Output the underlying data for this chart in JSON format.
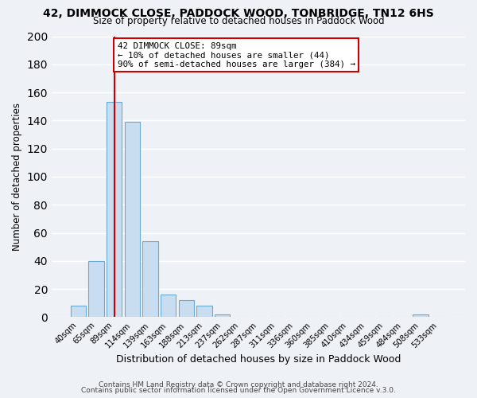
{
  "title": "42, DIMMOCK CLOSE, PADDOCK WOOD, TONBRIDGE, TN12 6HS",
  "subtitle": "Size of property relative to detached houses in Paddock Wood",
  "xlabel": "Distribution of detached houses by size in Paddock Wood",
  "ylabel": "Number of detached properties",
  "bar_labels": [
    "40sqm",
    "65sqm",
    "89sqm",
    "114sqm",
    "139sqm",
    "163sqm",
    "188sqm",
    "213sqm",
    "237sqm",
    "262sqm",
    "287sqm",
    "311sqm",
    "336sqm",
    "360sqm",
    "385sqm",
    "410sqm",
    "434sqm",
    "459sqm",
    "484sqm",
    "508sqm",
    "533sqm"
  ],
  "bar_values": [
    8,
    40,
    153,
    139,
    54,
    16,
    12,
    8,
    2,
    0,
    0,
    0,
    0,
    0,
    0,
    0,
    0,
    0,
    0,
    2,
    0
  ],
  "bar_facecolor": "#c8ddf0",
  "bar_edgecolor": "#6aabd2",
  "property_line_x": 2,
  "annotation_title": "42 DIMMOCK CLOSE: 89sqm",
  "annotation_line1": "← 10% of detached houses are smaller (44)",
  "annotation_line2": "90% of semi-detached houses are larger (384) →",
  "annotation_box_facecolor": "#ffffff",
  "annotation_box_edgecolor": "#cc0000",
  "line_color": "#cc0000",
  "ylim": [
    0,
    200
  ],
  "yticks": [
    0,
    20,
    40,
    60,
    80,
    100,
    120,
    140,
    160,
    180,
    200
  ],
  "footer1": "Contains HM Land Registry data © Crown copyright and database right 2024.",
  "footer2": "Contains public sector information licensed under the Open Government Licence v.3.0.",
  "bg_color": "#eef2f7",
  "plot_bg_color": "#eef2f7",
  "grid_color": "#ffffff"
}
